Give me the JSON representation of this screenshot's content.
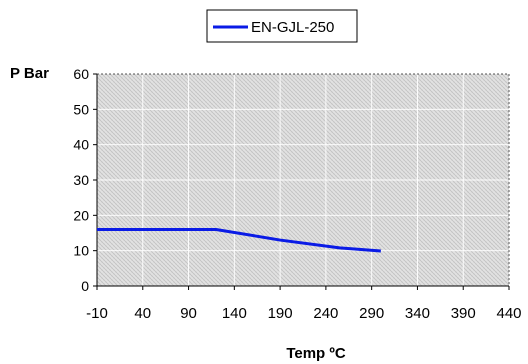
{
  "chart_data": {
    "type": "line",
    "xlabel": "Temp ºC",
    "ylabel": "P Bar",
    "xlim": [
      -10,
      440
    ],
    "ylim": [
      0,
      60
    ],
    "x_ticks": [
      -10,
      40,
      90,
      140,
      190,
      240,
      290,
      340,
      390,
      440
    ],
    "y_ticks": [
      0,
      10,
      20,
      30,
      40,
      50,
      60
    ],
    "grid": true,
    "legend_position": "top-center",
    "series": [
      {
        "name": "EN-GJL-250",
        "color": "#0a1be6",
        "x": [
          -10,
          120,
          190,
          255,
          300
        ],
        "y": [
          16,
          16,
          13,
          10.8,
          9.9
        ]
      }
    ]
  }
}
